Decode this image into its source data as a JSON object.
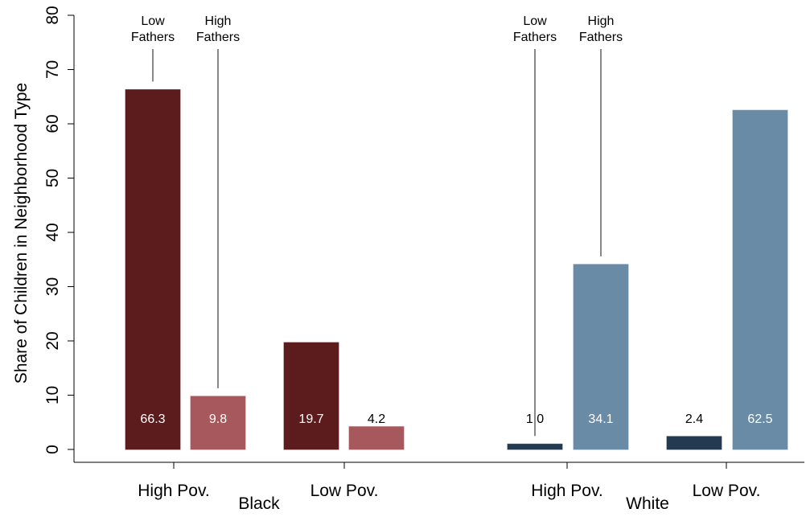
{
  "chart_data": {
    "type": "bar",
    "ylabel": "Share of Children in Neighborhood Type",
    "categories": [
      "High Pov.",
      "Low Pov.",
      "High Pov.",
      "Low Pov."
    ],
    "group_labels": [
      "Black",
      "White"
    ],
    "series": [
      {
        "name": "Low Fathers",
        "colors": [
          "#5c1c1e",
          "#5c1c1e",
          "#233a50",
          "#233a50"
        ],
        "values": [
          66.3,
          19.7,
          1.0,
          2.4
        ],
        "value_labels": [
          "66.3",
          "19.7",
          "1.0",
          "2.4"
        ]
      },
      {
        "name": "High Fathers",
        "colors": [
          "#a6585c",
          "#a6585c",
          "#6a8ba6",
          "#6a8ba6"
        ],
        "values": [
          9.8,
          4.2,
          34.1,
          62.5
        ],
        "value_labels": [
          "9.8",
          "4.2",
          "34.1",
          "62.5"
        ]
      }
    ],
    "annotations": [
      [
        "Low",
        "Fathers"
      ],
      [
        "High",
        "Fathers"
      ]
    ],
    "ylim": [
      0,
      80
    ],
    "yticks": [
      0,
      10,
      20,
      30,
      40,
      50,
      60,
      70,
      80
    ]
  }
}
